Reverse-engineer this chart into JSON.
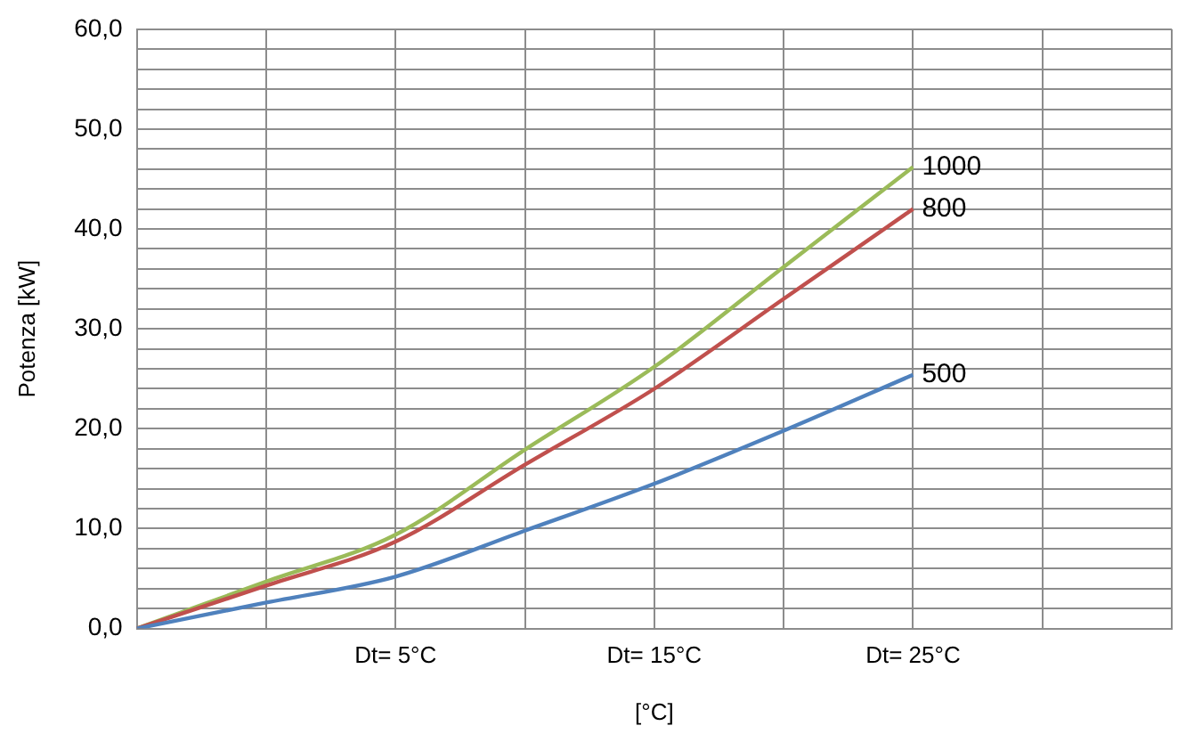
{
  "chart_data": {
    "type": "line",
    "xlabel": "[°C]",
    "ylabel": "Potenza [kW]",
    "categories": [
      null,
      null,
      "Dt= 5°C",
      null,
      "Dt= 15°C",
      null,
      "Dt= 25°C",
      null,
      null
    ],
    "series": [
      {
        "name": "500",
        "color": "#4f81bd",
        "values": [
          0,
          2.6,
          5.2,
          9.8,
          14.5,
          19.8,
          25.4,
          null,
          null
        ]
      },
      {
        "name": "800",
        "color": "#c0504d",
        "values": [
          0,
          4.3,
          8.7,
          16.4,
          24.0,
          33.0,
          42.0,
          null,
          null
        ]
      },
      {
        "name": "1000",
        "color": "#9bbb59",
        "values": [
          0,
          4.7,
          9.4,
          17.9,
          26.2,
          36.2,
          46.2,
          null,
          null
        ]
      }
    ],
    "ylim": [
      0,
      60
    ],
    "yticks": [
      {
        "value": 0,
        "label": "0,0"
      },
      {
        "value": 2,
        "label": null
      },
      {
        "value": 4,
        "label": null
      },
      {
        "value": 6,
        "label": null
      },
      {
        "value": 8,
        "label": null
      },
      {
        "value": 10,
        "label": "10,0"
      },
      {
        "value": 12,
        "label": null
      },
      {
        "value": 14,
        "label": null
      },
      {
        "value": 16,
        "label": null
      },
      {
        "value": 18,
        "label": null
      },
      {
        "value": 20,
        "label": "20,0"
      },
      {
        "value": 22,
        "label": null
      },
      {
        "value": 24,
        "label": null
      },
      {
        "value": 26,
        "label": null
      },
      {
        "value": 28,
        "label": null
      },
      {
        "value": 30,
        "label": "30,0"
      },
      {
        "value": 32,
        "label": null
      },
      {
        "value": 34,
        "label": null
      },
      {
        "value": 36,
        "label": null
      },
      {
        "value": 38,
        "label": null
      },
      {
        "value": 40,
        "label": "40,0"
      },
      {
        "value": 42,
        "label": null
      },
      {
        "value": 44,
        "label": null
      },
      {
        "value": 46,
        "label": null
      },
      {
        "value": 48,
        "label": null
      },
      {
        "value": 50,
        "label": "50,0"
      },
      {
        "value": 52,
        "label": null
      },
      {
        "value": 54,
        "label": null
      },
      {
        "value": 56,
        "label": null
      },
      {
        "value": 58,
        "label": null
      },
      {
        "value": 60,
        "label": "60,0"
      }
    ],
    "grid": true,
    "legend": false,
    "marker": "none",
    "line_style": "solid"
  }
}
